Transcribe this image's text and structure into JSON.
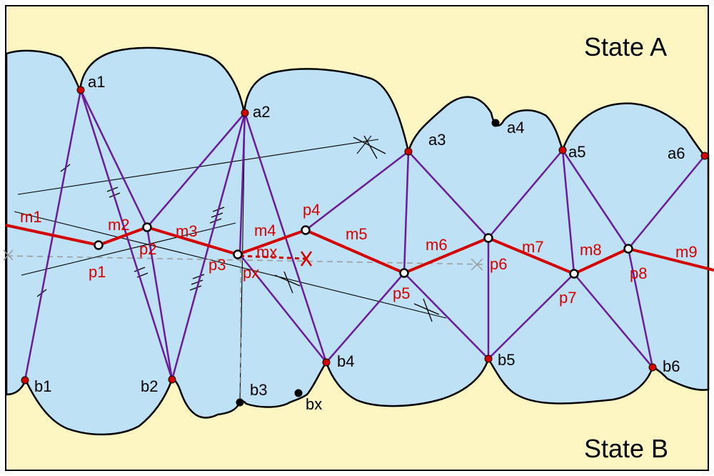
{
  "states": {
    "top": "State A",
    "bottom": "State B"
  },
  "points_a": [
    "a1",
    "a2",
    "a3",
    "a4",
    "a5",
    "a6"
  ],
  "points_b": [
    "b1",
    "b2",
    "b3",
    "bx",
    "b4",
    "b5",
    "b6"
  ],
  "points_p": [
    "p1",
    "p2",
    "p3",
    "px",
    "p4",
    "p5",
    "p6",
    "p7",
    "p8"
  ],
  "segments_m": [
    "m1",
    "m2",
    "m3",
    "m4",
    "mx",
    "m5",
    "m6",
    "m7",
    "m8",
    "m9"
  ],
  "colors": {
    "background": "#fdf5c2",
    "water": "#bfe1f5",
    "border": "#000000",
    "purple": "#6a1b9a",
    "red": "#d40000",
    "construction": "#000000",
    "guide": "#9a9a9a"
  }
}
